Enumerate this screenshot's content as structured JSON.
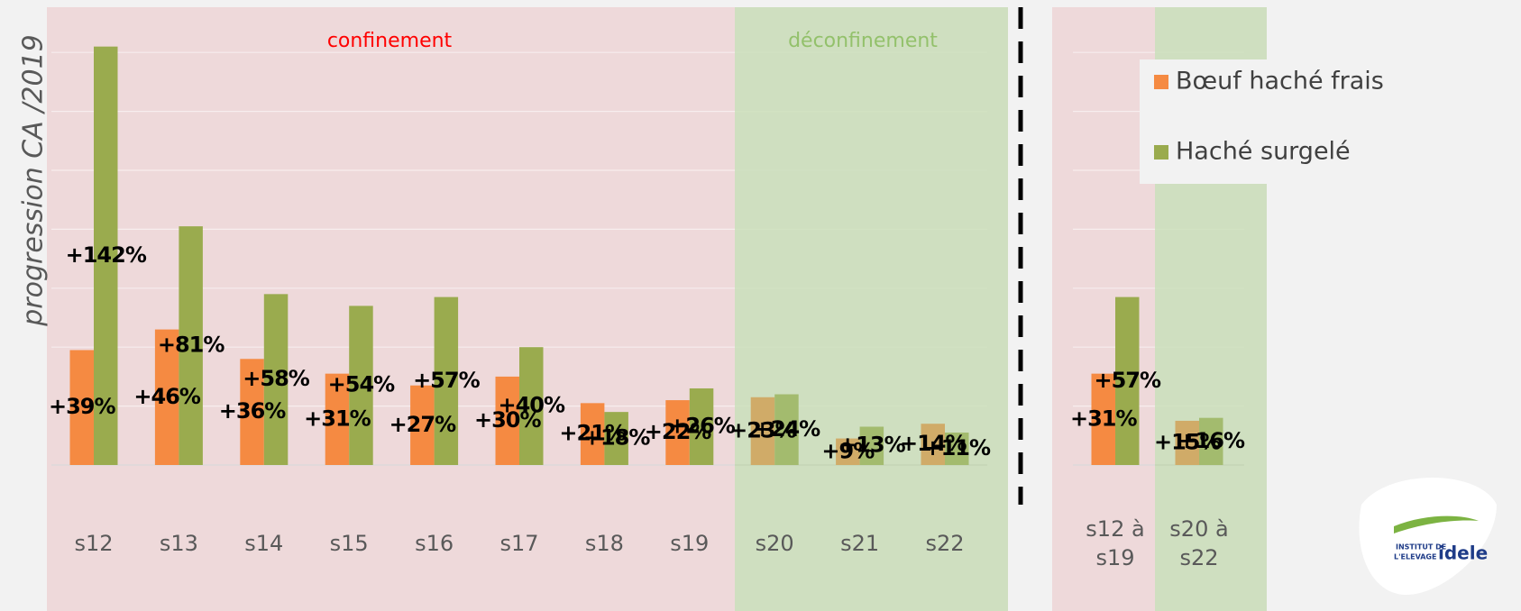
{
  "chart_data": [
    {
      "type": "bar",
      "y_label": "progression CA /2019",
      "annotations": [
        "confinement",
        "déconfinement"
      ],
      "categories": [
        "s12",
        "s13",
        "s14",
        "s15",
        "s16",
        "s17",
        "s18",
        "s19",
        "s20",
        "s21",
        "s22"
      ],
      "series": [
        {
          "name": "Bœuf haché frais",
          "color": "#f58a42",
          "values": [
            39,
            46,
            36,
            31,
            27,
            30,
            21,
            22,
            23,
            9,
            14
          ],
          "value_labels": [
            "+39%",
            "+46%",
            "+36%",
            "+31%",
            "+27%",
            "+30%",
            "+21%",
            "+22%",
            "+23%",
            "+9%",
            "+14%"
          ]
        },
        {
          "name": "Haché surgelé",
          "color": "#9aab4e",
          "values": [
            142,
            81,
            58,
            54,
            57,
            40,
            18,
            26,
            24,
            13,
            11
          ],
          "value_labels": [
            "+142%",
            "+81%",
            "+58%",
            "+54%",
            "+57%",
            "+40%",
            "+18%",
            "+26%",
            "+24%",
            "+13%",
            "+11%"
          ]
        }
      ],
      "ylim": [
        0,
        150
      ],
      "yticks": [
        0,
        20,
        40,
        60,
        80,
        100,
        120,
        140
      ],
      "grid": true
    },
    {
      "type": "bar",
      "categories": [
        "s12 à s19",
        "s20 à s22"
      ],
      "series": [
        {
          "name": "Bœuf haché frais",
          "color": "#f58a42",
          "values": [
            31,
            15
          ],
          "value_labels": [
            "+31%",
            "+15%"
          ]
        },
        {
          "name": "Haché surgelé",
          "color": "#9aab4e",
          "values": [
            57,
            16
          ],
          "value_labels": [
            "+57%",
            "+16%"
          ]
        }
      ],
      "ylim": [
        0,
        150
      ],
      "yticks": [
        0,
        20,
        40,
        60,
        80,
        100,
        120,
        140
      ],
      "grid": true
    }
  ],
  "logo": {
    "line1": "INSTITUT DE",
    "line2": "L'ELEVAGE",
    "brand": "idele"
  }
}
